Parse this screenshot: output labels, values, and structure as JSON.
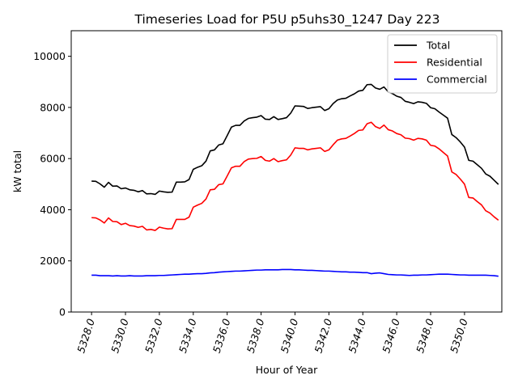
{
  "chart_data": {
    "type": "line",
    "title": "Timeseries Load for P5U p5uhs30_1247  Day 223",
    "xlabel": "Hour of Year",
    "ylabel": "kW total",
    "xlim": [
      5326.8,
      5352.2
    ],
    "ylim": [
      0,
      11000
    ],
    "xticks": [
      5328,
      5330,
      5332,
      5334,
      5336,
      5338,
      5340,
      5342,
      5344,
      5346,
      5348,
      5350
    ],
    "xtick_labels": [
      "5328.0",
      "5330.0",
      "5332.0",
      "5334.0",
      "5336.0",
      "5338.0",
      "5340.0",
      "5342.0",
      "5344.0",
      "5346.0",
      "5348.0",
      "5350.0"
    ],
    "yticks": [
      0,
      2000,
      4000,
      6000,
      8000,
      10000
    ],
    "ytick_labels": [
      "0",
      "2000",
      "4000",
      "6000",
      "8000",
      "10000"
    ],
    "legend_position": "top-right",
    "x_start": 5328.0,
    "x_step": 0.25,
    "series": [
      {
        "name": "Total",
        "color": "#000000",
        "values": [
          5120,
          5110,
          5010,
          4880,
          5070,
          4920,
          4930,
          4820,
          4850,
          4780,
          4760,
          4700,
          4750,
          4620,
          4630,
          4600,
          4730,
          4700,
          4680,
          4690,
          5080,
          5080,
          5090,
          5180,
          5580,
          5660,
          5720,
          5900,
          6300,
          6340,
          6530,
          6580,
          6900,
          7230,
          7300,
          7300,
          7470,
          7570,
          7600,
          7620,
          7680,
          7540,
          7530,
          7640,
          7530,
          7560,
          7600,
          7780,
          8060,
          8050,
          8040,
          7960,
          7990,
          8010,
          8030,
          7880,
          7950,
          8150,
          8290,
          8340,
          8360,
          8450,
          8530,
          8640,
          8670,
          8890,
          8900,
          8760,
          8710,
          8800,
          8610,
          8540,
          8440,
          8390,
          8240,
          8200,
          8150,
          8220,
          8200,
          8160,
          7990,
          7950,
          7820,
          7700,
          7580,
          6940,
          6820,
          6650,
          6450,
          5930,
          5900,
          5760,
          5620,
          5400,
          5310,
          5150,
          4990
        ]
      },
      {
        "name": "Residential",
        "color": "#ff0000",
        "values": [
          3690,
          3680,
          3600,
          3480,
          3680,
          3540,
          3530,
          3420,
          3470,
          3380,
          3360,
          3310,
          3350,
          3210,
          3230,
          3190,
          3320,
          3280,
          3250,
          3260,
          3620,
          3620,
          3620,
          3710,
          4100,
          4180,
          4250,
          4420,
          4780,
          4800,
          4980,
          5010,
          5320,
          5640,
          5700,
          5700,
          5880,
          5980,
          6000,
          6010,
          6080,
          5930,
          5900,
          6000,
          5880,
          5920,
          5950,
          6140,
          6420,
          6400,
          6400,
          6340,
          6380,
          6400,
          6420,
          6280,
          6340,
          6540,
          6720,
          6770,
          6790,
          6880,
          6980,
          7100,
          7120,
          7360,
          7420,
          7250,
          7180,
          7310,
          7130,
          7080,
          6980,
          6930,
          6800,
          6780,
          6720,
          6790,
          6770,
          6720,
          6520,
          6490,
          6380,
          6240,
          6100,
          5480,
          5380,
          5200,
          5000,
          4480,
          4460,
          4320,
          4190,
          3960,
          3870,
          3720,
          3590
        ]
      },
      {
        "name": "Commercial",
        "color": "#0000ff",
        "values": [
          1440,
          1440,
          1420,
          1420,
          1420,
          1410,
          1420,
          1410,
          1410,
          1420,
          1410,
          1410,
          1410,
          1420,
          1420,
          1420,
          1430,
          1430,
          1440,
          1450,
          1460,
          1470,
          1480,
          1480,
          1490,
          1500,
          1500,
          1510,
          1530,
          1540,
          1560,
          1570,
          1580,
          1590,
          1600,
          1600,
          1610,
          1620,
          1630,
          1640,
          1640,
          1650,
          1650,
          1650,
          1650,
          1660,
          1660,
          1660,
          1650,
          1650,
          1640,
          1630,
          1630,
          1620,
          1610,
          1600,
          1600,
          1590,
          1580,
          1570,
          1570,
          1560,
          1560,
          1550,
          1540,
          1540,
          1500,
          1520,
          1530,
          1500,
          1470,
          1460,
          1450,
          1450,
          1440,
          1430,
          1440,
          1440,
          1450,
          1450,
          1460,
          1470,
          1480,
          1480,
          1480,
          1470,
          1460,
          1450,
          1450,
          1440,
          1440,
          1440,
          1440,
          1440,
          1430,
          1420,
          1400
        ]
      }
    ]
  }
}
